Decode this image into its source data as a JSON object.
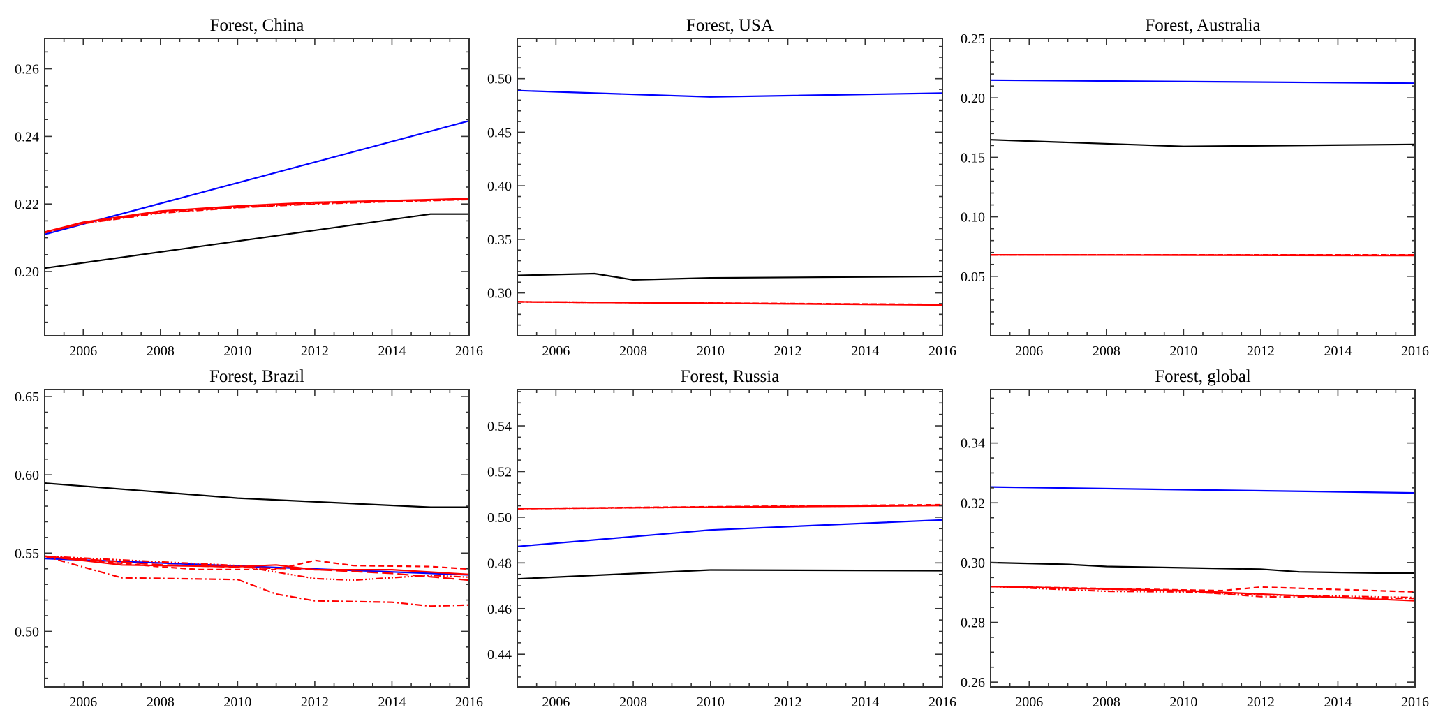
{
  "chart_data": [
    {
      "type": "line",
      "title": "Forest, China",
      "xlim": [
        2005,
        2016
      ],
      "ylim": [
        0.181,
        0.269
      ],
      "xticks": [
        "2006",
        "2008",
        "2010",
        "2012",
        "2014",
        "2016"
      ],
      "yticks": [
        "0.20",
        "0.22",
        "0.24",
        "0.26"
      ],
      "grid": false,
      "series": [
        {
          "color": "#000000",
          "linestyle": "solid",
          "x": [
            2005,
            2015,
            2016
          ],
          "y": [
            0.201,
            0.217,
            0.217
          ]
        },
        {
          "color": "#0000ff",
          "linestyle": "solid",
          "x": [
            2005,
            2016
          ],
          "y": [
            0.211,
            0.2446
          ]
        },
        {
          "color": "#ff0000",
          "linestyle": "solid",
          "x": [
            2005,
            2006,
            2008,
            2010,
            2012,
            2014,
            2016
          ],
          "y": [
            0.2117,
            0.2146,
            0.2179,
            0.2194,
            0.2205,
            0.221,
            0.2216
          ]
        },
        {
          "color": "#ff0000",
          "linestyle": "dashed",
          "x": [
            2005,
            2006,
            2008,
            2010,
            2012,
            2014,
            2016
          ],
          "y": [
            0.2115,
            0.2143,
            0.2175,
            0.219,
            0.2202,
            0.2208,
            0.2214
          ]
        },
        {
          "color": "#ff0000",
          "linestyle": "dashdot",
          "x": [
            2005,
            2006,
            2008,
            2010,
            2012,
            2014,
            2016
          ],
          "y": [
            0.2116,
            0.2142,
            0.2173,
            0.2189,
            0.22,
            0.2207,
            0.2213
          ]
        },
        {
          "color": "#ff0000",
          "linestyle": "dashdotdotdot",
          "x": [
            2005,
            2006,
            2008,
            2010,
            2012,
            2014,
            2016
          ],
          "y": [
            0.2116,
            0.2144,
            0.2176,
            0.2191,
            0.2203,
            0.2209,
            0.2215
          ]
        }
      ]
    },
    {
      "type": "line",
      "title": "Forest, USA",
      "xlim": [
        2005,
        2016
      ],
      "ylim": [
        0.26,
        0.5376
      ],
      "xticks": [
        "2006",
        "2008",
        "2010",
        "2012",
        "2014",
        "2016"
      ],
      "yticks": [
        "0.30",
        "0.35",
        "0.40",
        "0.45",
        "0.50"
      ],
      "grid": false,
      "series": [
        {
          "color": "#000000",
          "linestyle": "solid",
          "x": [
            2005,
            2007,
            2008,
            2010,
            2016
          ],
          "y": [
            0.3163,
            0.318,
            0.3122,
            0.314,
            0.3154
          ]
        },
        {
          "color": "#0000ff",
          "linestyle": "solid",
          "x": [
            2005,
            2010,
            2016
          ],
          "y": [
            0.4889,
            0.483,
            0.4865
          ]
        },
        {
          "color": "#ff0000",
          "linestyle": "solid",
          "x": [
            2005,
            2016
          ],
          "y": [
            0.2917,
            0.2887
          ]
        },
        {
          "color": "#ff0000",
          "linestyle": "dashed",
          "x": [
            2005,
            2016
          ],
          "y": [
            0.2917,
            0.2892
          ]
        },
        {
          "color": "#ff0000",
          "linestyle": "dashdot",
          "x": [
            2005,
            2016
          ],
          "y": [
            0.2916,
            0.2889
          ]
        },
        {
          "color": "#ff0000",
          "linestyle": "dashdotdotdot",
          "x": [
            2005,
            2016
          ],
          "y": [
            0.2917,
            0.289
          ]
        }
      ]
    },
    {
      "type": "line",
      "title": "Forest, Australia",
      "xlim": [
        2005,
        2016
      ],
      "ylim": [
        0.0,
        0.25
      ],
      "xticks": [
        "2006",
        "2008",
        "2010",
        "2012",
        "2014",
        "2016"
      ],
      "yticks": [
        "0.05",
        "0.10",
        "0.15",
        "0.20",
        "0.25"
      ],
      "grid": false,
      "series": [
        {
          "color": "#000000",
          "linestyle": "solid",
          "x": [
            2005,
            2010,
            2016
          ],
          "y": [
            0.1648,
            0.1592,
            0.1609
          ]
        },
        {
          "color": "#0000ff",
          "linestyle": "solid",
          "x": [
            2005,
            2016
          ],
          "y": [
            0.2149,
            0.2123
          ]
        },
        {
          "color": "#ff0000",
          "linestyle": "solid",
          "x": [
            2005,
            2016
          ],
          "y": [
            0.068,
            0.0674
          ]
        },
        {
          "color": "#ff0000",
          "linestyle": "dashed",
          "x": [
            2005,
            2016
          ],
          "y": [
            0.068,
            0.068
          ]
        },
        {
          "color": "#ff0000",
          "linestyle": "dashdot",
          "x": [
            2005,
            2016
          ],
          "y": [
            0.068,
            0.0677
          ]
        },
        {
          "color": "#ff0000",
          "linestyle": "dashdotdotdot",
          "x": [
            2005,
            2016
          ],
          "y": [
            0.068,
            0.0678
          ]
        }
      ]
    },
    {
      "type": "line",
      "title": "Forest, Brazil",
      "xlim": [
        2005,
        2016
      ],
      "ylim": [
        0.4645,
        0.6545
      ],
      "xticks": [
        "2006",
        "2008",
        "2010",
        "2012",
        "2014",
        "2016"
      ],
      "yticks": [
        "0.50",
        "0.55",
        "0.60",
        "0.65"
      ],
      "grid": false,
      "series": [
        {
          "color": "#000000",
          "linestyle": "solid",
          "x": [
            2005,
            2010,
            2015,
            2016
          ],
          "y": [
            0.5947,
            0.5851,
            0.5793,
            0.5793
          ]
        },
        {
          "color": "#0000ff",
          "linestyle": "solid",
          "x": [
            2005,
            2016
          ],
          "y": [
            0.5465,
            0.5361
          ]
        },
        {
          "color": "#ff0000",
          "linestyle": "solid",
          "x": [
            2005,
            2007,
            2010,
            2011,
            2012,
            2014,
            2016
          ],
          "y": [
            0.548,
            0.5424,
            0.5413,
            0.5424,
            0.5394,
            0.5394,
            0.5364
          ]
        },
        {
          "color": "#ff0000",
          "linestyle": "dashed",
          "x": [
            2005,
            2008,
            2009,
            2011,
            2012,
            2013,
            2015,
            2016
          ],
          "y": [
            0.548,
            0.5412,
            0.5395,
            0.5395,
            0.5453,
            0.542,
            0.5414,
            0.5398
          ]
        },
        {
          "color": "#ff0000",
          "linestyle": "dashdot",
          "x": [
            2005,
            2007,
            2010,
            2011,
            2012,
            2014,
            2015,
            2016
          ],
          "y": [
            0.548,
            0.5342,
            0.5331,
            0.5238,
            0.5195,
            0.5186,
            0.5161,
            0.5168
          ]
        },
        {
          "color": "#ff0000",
          "linestyle": "dashdotdotdot",
          "x": [
            2005,
            2010,
            2012,
            2013,
            2014,
            2015,
            2016
          ],
          "y": [
            0.548,
            0.542,
            0.5337,
            0.5327,
            0.5343,
            0.5358,
            0.5346
          ]
        },
        {
          "color": "#ff0000",
          "linestyle": "longdash",
          "x": [
            2005,
            2008,
            2010,
            2012,
            2014,
            2016
          ],
          "y": [
            0.548,
            0.5425,
            0.541,
            0.5395,
            0.537,
            0.5327
          ]
        }
      ]
    },
    {
      "type": "line",
      "title": "Forest, Russia",
      "xlim": [
        2005,
        2016
      ],
      "ylim": [
        0.4257,
        0.5559
      ],
      "xticks": [
        "2006",
        "2008",
        "2010",
        "2012",
        "2014",
        "2016"
      ],
      "yticks": [
        "0.44",
        "0.46",
        "0.48",
        "0.50",
        "0.52",
        "0.54"
      ],
      "grid": false,
      "series": [
        {
          "color": "#000000",
          "linestyle": "solid",
          "x": [
            2005,
            2010,
            2016
          ],
          "y": [
            0.473,
            0.4769,
            0.4766
          ]
        },
        {
          "color": "#0000ff",
          "linestyle": "solid",
          "x": [
            2005,
            2010,
            2016
          ],
          "y": [
            0.4872,
            0.4944,
            0.4988
          ]
        },
        {
          "color": "#ff0000",
          "linestyle": "solid",
          "x": [
            2005,
            2016
          ],
          "y": [
            0.5038,
            0.5051
          ]
        },
        {
          "color": "#ff0000",
          "linestyle": "dashed",
          "x": [
            2005,
            2016
          ],
          "y": [
            0.5038,
            0.5055
          ]
        },
        {
          "color": "#ff0000",
          "linestyle": "dashdot",
          "x": [
            2005,
            2016
          ],
          "y": [
            0.5037,
            0.5052
          ]
        },
        {
          "color": "#ff0000",
          "linestyle": "dashdotdotdot",
          "x": [
            2005,
            2016
          ],
          "y": [
            0.5038,
            0.5053
          ]
        }
      ]
    },
    {
      "type": "line",
      "title": "Forest, global",
      "xlim": [
        2005,
        2016
      ],
      "ylim": [
        0.2584,
        0.3579
      ],
      "xticks": [
        "2006",
        "2008",
        "2010",
        "2012",
        "2014",
        "2016"
      ],
      "yticks": [
        "0.26",
        "0.28",
        "0.30",
        "0.32",
        "0.34"
      ],
      "grid": false,
      "series": [
        {
          "color": "#000000",
          "linestyle": "solid",
          "x": [
            2005,
            2007,
            2008,
            2012,
            2013,
            2015,
            2016
          ],
          "y": [
            0.3,
            0.2994,
            0.2987,
            0.2978,
            0.2969,
            0.2965,
            0.2965
          ]
        },
        {
          "color": "#0000ff",
          "linestyle": "solid",
          "x": [
            2005,
            2016
          ],
          "y": [
            0.3253,
            0.3233
          ]
        },
        {
          "color": "#ff0000",
          "linestyle": "solid",
          "x": [
            2005,
            2010,
            2016
          ],
          "y": [
            0.292,
            0.2906,
            0.2872
          ]
        },
        {
          "color": "#ff0000",
          "linestyle": "dashed",
          "x": [
            2005,
            2011,
            2012,
            2013,
            2016
          ],
          "y": [
            0.292,
            0.2906,
            0.2918,
            0.2914,
            0.2902
          ]
        },
        {
          "color": "#ff0000",
          "linestyle": "dashdot",
          "x": [
            2005,
            2010,
            2012,
            2016
          ],
          "y": [
            0.292,
            0.2905,
            0.2886,
            0.288
          ]
        },
        {
          "color": "#ff0000",
          "linestyle": "dashdotdotdot",
          "x": [
            2005,
            2008,
            2010,
            2012,
            2016
          ],
          "y": [
            0.292,
            0.2904,
            0.2902,
            0.2892,
            0.2883
          ]
        }
      ]
    }
  ]
}
